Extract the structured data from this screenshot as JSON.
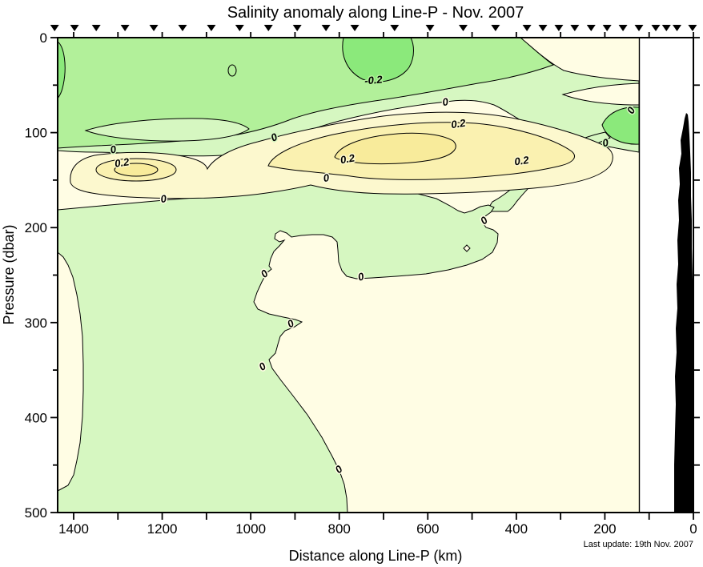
{
  "title": "Salinity anomaly along Line-P - Nov. 2007",
  "footnote": "Last update: 19th Nov. 2007",
  "chart_data": {
    "type": "heatmap",
    "variant": "filled-contour-vertical-section",
    "title": "Salinity anomaly along Line-P - Nov. 2007",
    "xlabel": "Distance along Line-P (km)",
    "ylabel": "Pressure (dbar)",
    "xlim": [
      1443,
      0
    ],
    "ylim": [
      0,
      500
    ],
    "x_axis_reversed": true,
    "y_axis_downward": true,
    "x_major_ticks": [
      1400,
      1200,
      1000,
      800,
      600,
      400,
      200,
      0
    ],
    "x_minor_tick_interval": 100,
    "y_major_ticks": [
      0,
      100,
      200,
      300,
      400,
      500
    ],
    "y_minor_tick_interval": 50,
    "contour_interval": 0.1,
    "labeled_contour_levels": [
      -0.2,
      0,
      0.2
    ],
    "anomaly_range": [
      -0.3,
      0.35
    ],
    "band_colors": {
      "below_-0.2": "#8BE97B",
      "-0.2_to_-0.1": "#B2F09A",
      "-0.1_to_0": "#D6F7C1",
      "0_to_0.1": "#FFFDE4",
      "0.1_to_0.2": "#FCF8CE",
      "0.2_to_0.3": "#FAF1B0",
      "above_0.3": "#F8EB9B"
    },
    "contour_line_color": "#000000",
    "no_data_beyond_km": 123,
    "station_distances_km": [
      1443,
      1398,
      1349,
      1284,
      1219,
      1154,
      1089,
      1025,
      960,
      895,
      830,
      765,
      675,
      595,
      520,
      447,
      376,
      340,
      304,
      268,
      231,
      195,
      159,
      123,
      85,
      61,
      37,
      2
    ],
    "bathymetry": {
      "starts_km": 47,
      "min_pressure_dbar": 79,
      "color": "#000000"
    },
    "features": [
      {
        "name": "fresh surface pool",
        "level": -0.2,
        "km": [
          626,
          798
        ],
        "dbar": [
          0,
          49
        ]
      },
      {
        "name": "fresh near-shore subsurface pocket",
        "level": -0.2,
        "km": [
          123,
          213
        ],
        "dbar": [
          72,
          114
        ]
      },
      {
        "name": "salty subsurface core (east)",
        "level": 0.3,
        "km": [
          543,
          810
        ],
        "dbar": [
          100,
          134
        ]
      },
      {
        "name": "salty subsurface core (west)",
        "level": 0.3,
        "km": [
          1210,
          1308
        ],
        "dbar": [
          132,
          147
        ]
      },
      {
        "name": "near-zero deep field",
        "level": 0,
        "km": [
          0,
          1443
        ],
        "dbar": [
          250,
          500
        ]
      }
    ],
    "contour_labels": [
      {
        "text": "-0.2",
        "km": 722,
        "dbar": 45,
        "rot": -5,
        "halo": "#B2F09A"
      },
      {
        "text": "0",
        "km": 559,
        "dbar": 68,
        "rot": -10,
        "halo": "#FFFDE4"
      },
      {
        "text": "0.2",
        "km": 530,
        "dbar": 91,
        "rot": -8,
        "halo": "#FCF8CE"
      },
      {
        "text": "0.2",
        "km": 780,
        "dbar": 128,
        "rot": -10,
        "halo": "#FCF8CE"
      },
      {
        "text": "0.2",
        "km": 387,
        "dbar": 130,
        "rot": -8,
        "halo": "#FCF8CE"
      },
      {
        "text": "0",
        "km": 197,
        "dbar": 111,
        "rot": -12,
        "halo": "#D6F7C1"
      },
      {
        "text": "0",
        "km": 134,
        "dbar": 75,
        "rot": -60,
        "halo": "#D6F7C1"
      },
      {
        "text": "0",
        "km": 1309,
        "dbar": 118,
        "rot": -12,
        "halo": "#D6F7C1"
      },
      {
        "text": "0.2",
        "km": 1290,
        "dbar": 132,
        "rot": -8,
        "halo": "#FCF8CE"
      },
      {
        "text": "0",
        "km": 1196,
        "dbar": 170,
        "rot": -8,
        "halo": "#FFFDE4"
      },
      {
        "text": "0",
        "km": 944,
        "dbar": 105,
        "rot": -25,
        "halo": "#D6F7C1"
      },
      {
        "text": "0",
        "km": 828,
        "dbar": 148,
        "rot": -10,
        "halo": "#FFFDE4"
      },
      {
        "text": "0",
        "km": 964,
        "dbar": 248,
        "rot": -40,
        "halo": "#FFFDE4"
      },
      {
        "text": "0",
        "km": 749,
        "dbar": 252,
        "rot": -15,
        "halo": "#FFFDE4"
      },
      {
        "text": "0",
        "km": 468,
        "dbar": 192,
        "rot": -40,
        "halo": "#FFFDE4"
      },
      {
        "text": "0",
        "km": 906,
        "dbar": 301,
        "rot": -30,
        "halo": "#FFFDE4"
      },
      {
        "text": "0",
        "km": 969,
        "dbar": 346,
        "rot": -35,
        "halo": "#FFFDE4"
      },
      {
        "text": "0",
        "km": 796,
        "dbar": 454,
        "rot": -40,
        "halo": "#FFFDE4"
      }
    ]
  }
}
